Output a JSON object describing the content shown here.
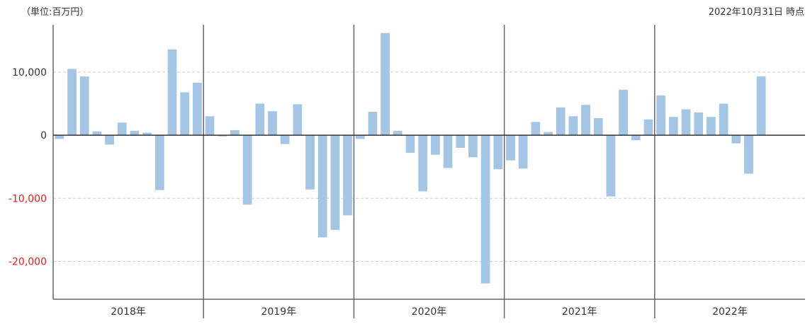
{
  "header": {
    "unit_label": "（単位:百万円）",
    "as_of": "2022年10月31日 時点"
  },
  "colors": {
    "bar": "#a4c5e4",
    "zero_line": "#333333",
    "grid": "#cccccc",
    "negative_tick": "#d81e1e",
    "separator": "#666666"
  },
  "chart_data": {
    "type": "bar",
    "y_ticks": [
      {
        "value": 10000,
        "label": "10,000",
        "negative": false
      },
      {
        "value": 0,
        "label": "0",
        "negative": false
      },
      {
        "value": -10000,
        "label": "-10,000",
        "negative": true
      },
      {
        "value": -20000,
        "label": "-20,000",
        "negative": true
      }
    ],
    "ylim": [
      -26000,
      17500
    ],
    "grid": true,
    "years": [
      {
        "label": "2018年",
        "values": [
          -600,
          10500,
          9300,
          600,
          -1500,
          2000,
          700,
          400,
          -8700,
          13600,
          6800,
          8300
        ]
      },
      {
        "label": "2019年",
        "values": [
          3000,
          -200,
          800,
          -11000,
          5000,
          3800,
          -1400,
          4900,
          -8600,
          -16200,
          -15000,
          -12700
        ]
      },
      {
        "label": "2020年",
        "values": [
          -600,
          3700,
          16200,
          700,
          -2800,
          -8900,
          -3100,
          -5200,
          -2000,
          -3500,
          -23500,
          -5400
        ]
      },
      {
        "label": "2021年",
        "values": [
          -4000,
          -5300,
          2100,
          500,
          4400,
          3000,
          4800,
          2700,
          -9700,
          7200,
          -800,
          2500
        ]
      },
      {
        "label": "2022年",
        "values": [
          6300,
          2900,
          4100,
          3600,
          2900,
          5000,
          -1300,
          -6100,
          9300
        ]
      }
    ]
  }
}
